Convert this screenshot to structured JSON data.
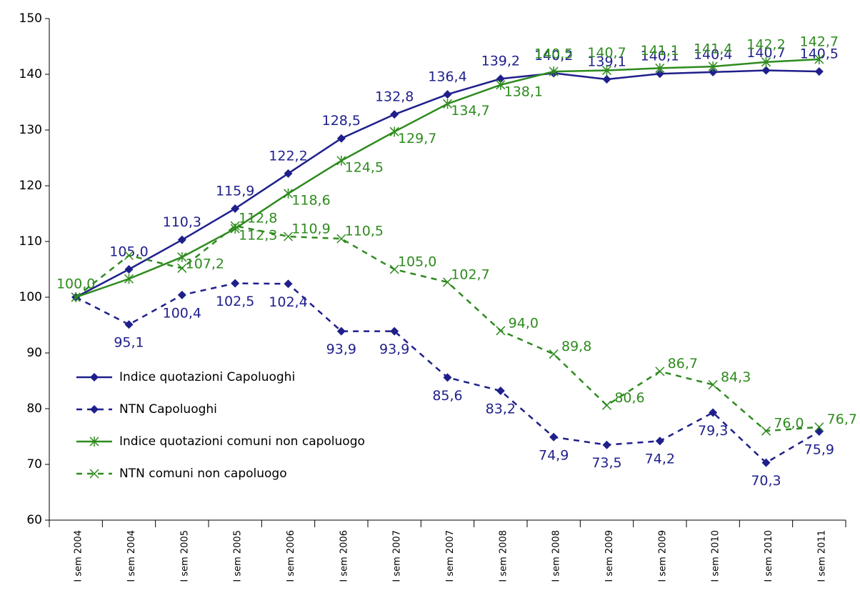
{
  "chart_data": {
    "type": "line",
    "categories": [
      "I sem 2004",
      "I sem 2004",
      "I sem 2005",
      "I sem 2005",
      "I sem 2006",
      "I sem 2006",
      "I sem 2007",
      "I sem 2007",
      "I sem 2008",
      "I sem 2008",
      "I sem 2009",
      "I sem 2009",
      "I sem 2010",
      "I sem 2010",
      "I sem 2011"
    ],
    "ylim": [
      60,
      150
    ],
    "yticks": [
      60,
      70,
      80,
      90,
      100,
      110,
      120,
      130,
      140,
      150
    ],
    "legend": "left",
    "series": [
      {
        "name": "Indice quotazioni Capoluoghi",
        "color": "#1f1f8c",
        "dash": "solid",
        "marker": "diamond",
        "values": [
          100.0,
          105.0,
          110.3,
          115.9,
          122.2,
          128.5,
          132.8,
          136.4,
          139.2,
          140.2,
          139.1,
          140.1,
          140.4,
          140.7,
          140.5
        ],
        "value_labels": [
          null,
          "105,0",
          "110,3",
          "115,9",
          "122,2",
          "128,5",
          "132,8",
          "136,4",
          "139,2",
          "140,2",
          "139,1",
          "140,1",
          "140,4",
          "140,7",
          "140,5"
        ]
      },
      {
        "name": "NTN Capoluoghi",
        "color": "#1f1f8c",
        "dash": "dashed",
        "marker": "diamond",
        "values": [
          100.0,
          95.1,
          100.4,
          102.5,
          102.4,
          93.9,
          93.9,
          85.6,
          83.2,
          74.9,
          73.5,
          74.2,
          79.3,
          70.3,
          75.9
        ],
        "value_labels": [
          null,
          "95,1",
          "100,4",
          "102,5",
          "102,4",
          "93,9",
          "93,9",
          "85,6",
          "83,2",
          "74,9",
          "73,5",
          "74,2",
          "79,3",
          "70,3",
          "75,9"
        ]
      },
      {
        "name": "Indice quotazioni comuni non capoluogo",
        "color": "#2e8b1e",
        "dash": "solid",
        "marker": "star",
        "values": [
          100.0,
          103.3,
          107.2,
          112.3,
          118.6,
          124.5,
          129.7,
          134.7,
          138.1,
          140.5,
          140.7,
          141.1,
          141.4,
          142.2,
          142.7
        ],
        "value_labels": [
          "100,0",
          null,
          "107,2",
          "112,3",
          "118,6",
          "124,5",
          "129,7",
          "134,7",
          "138,1",
          "140,5",
          "140,7",
          "141,1",
          "141,4",
          "142,2",
          "142,7"
        ]
      },
      {
        "name": "NTN comuni non capoluogo",
        "color": "#2e8b1e",
        "dash": "dashed",
        "marker": "x",
        "values": [
          100.0,
          107.5,
          105.2,
          112.8,
          110.9,
          110.5,
          105.0,
          102.7,
          94.0,
          89.8,
          80.6,
          86.7,
          84.3,
          76.0,
          76.7
        ],
        "value_labels": [
          null,
          null,
          null,
          "112,8",
          "110,9",
          "110,5",
          "105,0",
          "102,7",
          "94,0",
          "89,8",
          "80,6",
          "86,7",
          "84,3",
          "76,0",
          "76,7"
        ]
      }
    ]
  }
}
